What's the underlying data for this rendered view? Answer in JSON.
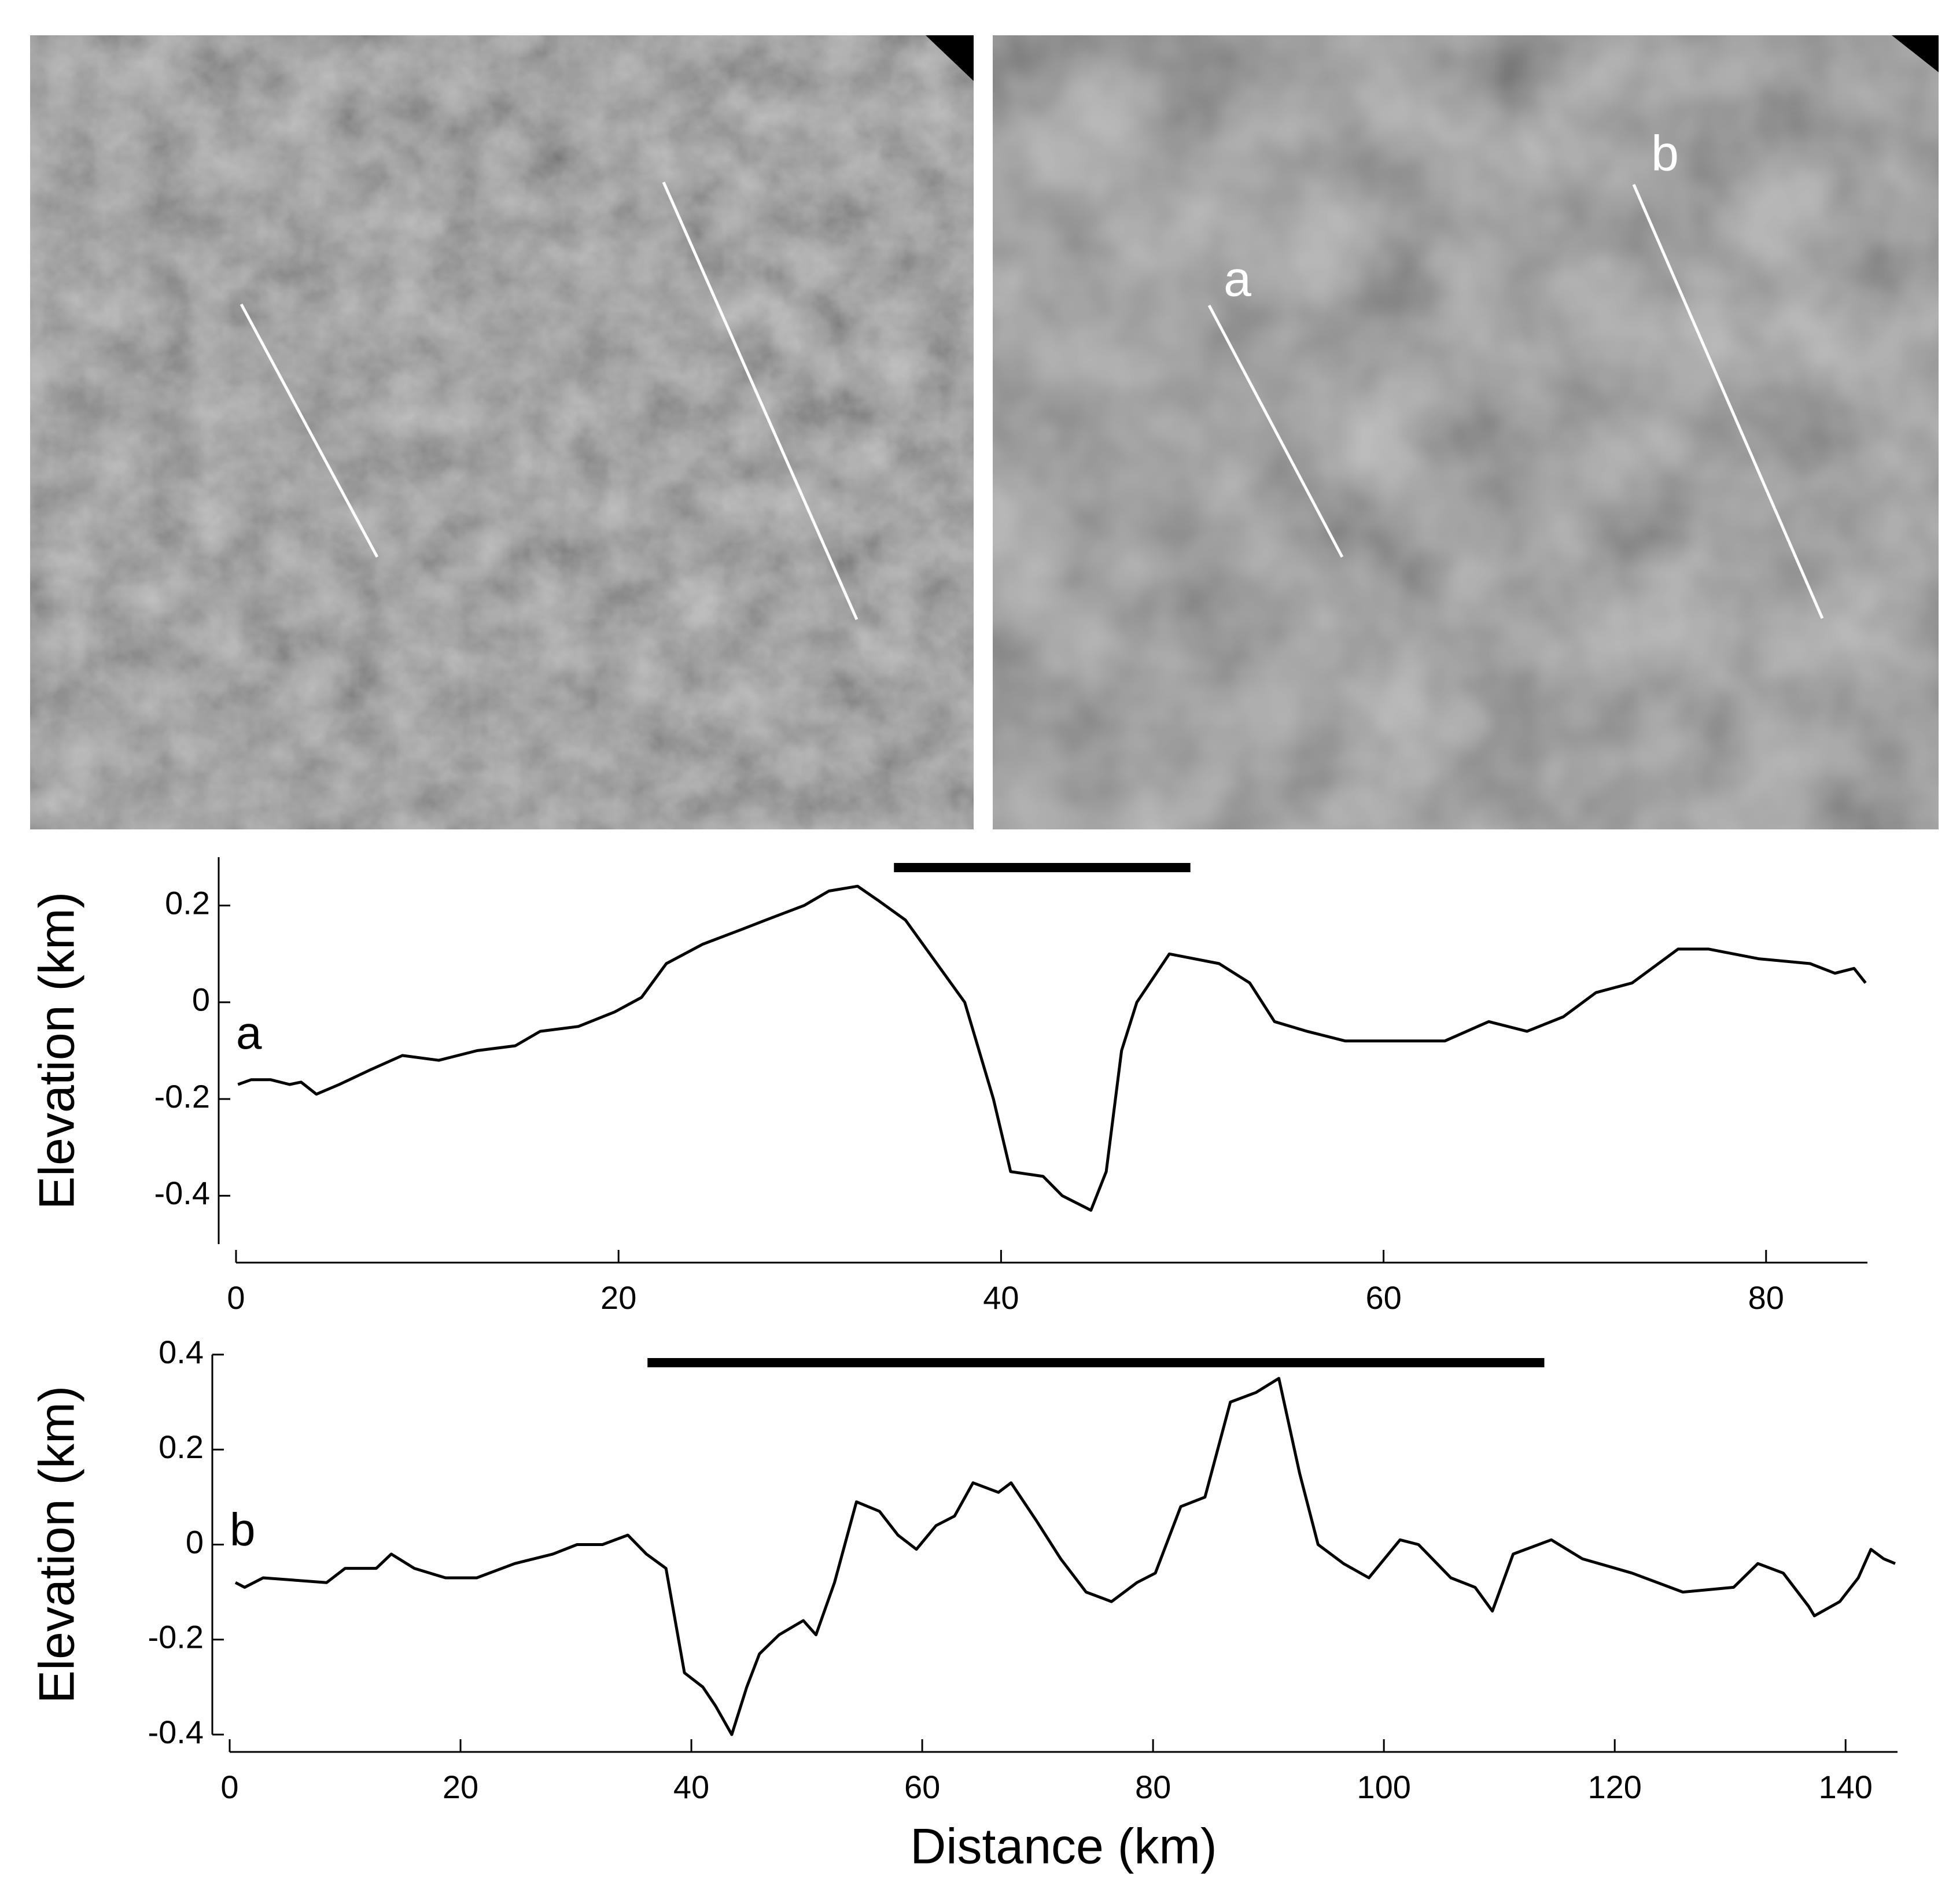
{
  "image_labels": [
    "a",
    "b"
  ],
  "chart_data": [
    {
      "type": "line",
      "label": "a",
      "ylabel": "Elevation (km)",
      "x": [
        0.1,
        0.8,
        1.8,
        2.8,
        3.4,
        4.2,
        5.4,
        7,
        8.7,
        10.6,
        12.6,
        14.6,
        15.9,
        17.9,
        19.8,
        21.2,
        22.5,
        24.4,
        26.4,
        27.7,
        29.7,
        31,
        32.5,
        33.6,
        35,
        38.1,
        39.6,
        40.5,
        42.2,
        43.2,
        44.7,
        45.5,
        46.3,
        47.1,
        48.8,
        51.4,
        53,
        54.3,
        56,
        58,
        59.9,
        63.2,
        65.5,
        67.5,
        69.4,
        71.1,
        73,
        75.4,
        77,
        79.6,
        82.3,
        83.6,
        84.6,
        85.2
      ],
      "values": [
        -0.17,
        -0.16,
        -0.16,
        -0.17,
        -0.165,
        -0.19,
        -0.17,
        -0.14,
        -0.11,
        -0.12,
        -0.1,
        -0.09,
        -0.06,
        -0.05,
        -0.02,
        0.01,
        0.08,
        0.12,
        0.15,
        0.17,
        0.2,
        0.23,
        0.24,
        0.21,
        0.17,
        0.0,
        -0.2,
        -0.35,
        -0.36,
        -0.4,
        -0.43,
        -0.35,
        -0.1,
        0.0,
        0.1,
        0.08,
        0.04,
        -0.04,
        -0.06,
        -0.08,
        -0.08,
        -0.08,
        -0.04,
        -0.06,
        -0.03,
        0.02,
        0.04,
        0.11,
        0.11,
        0.09,
        0.08,
        0.06,
        0.07,
        0.04
      ],
      "color": "#000000",
      "span": [
        34.4,
        49.9
      ],
      "xlim": [
        0,
        85.3
      ],
      "ylim": [
        -0.5,
        0.3
      ],
      "xticks": [
        0,
        20,
        40,
        60,
        80
      ],
      "yticks": [
        -0.4,
        -0.2,
        0,
        0.2
      ]
    },
    {
      "type": "line",
      "label": "b",
      "ylabel": "Elevation (km)",
      "xlabel": "Distance (km)",
      "x": [
        0.5,
        1.3,
        2.9,
        8.4,
        10,
        12.7,
        14,
        16,
        18.7,
        21.4,
        24.7,
        28,
        30.1,
        32.3,
        34.5,
        36.1,
        37.8,
        39.4,
        41,
        42.1,
        43.5,
        44.8,
        45.9,
        47.6,
        49.7,
        50.8,
        52.4,
        54.3,
        56.3,
        57.9,
        59.5,
        61.2,
        62.8,
        64.4,
        66.6,
        67.7,
        69.9,
        72,
        74.2,
        76.4,
        78.6,
        80.2,
        82.4,
        84.5,
        86.7,
        88.9,
        90.9,
        92.7,
        94.3,
        96.5,
        98.7,
        101.4,
        103,
        105.8,
        107.9,
        109.4,
        111.2,
        114.5,
        117.2,
        121.5,
        125.9,
        130.3,
        132.4,
        134.6,
        136.8,
        137.3,
        139.5,
        141.1,
        142.2,
        143.3,
        144.3
      ],
      "values": [
        -0.08,
        -0.09,
        -0.07,
        -0.08,
        -0.05,
        -0.05,
        -0.02,
        -0.05,
        -0.07,
        -0.07,
        -0.04,
        -0.02,
        0.0,
        0.0,
        0.02,
        -0.02,
        -0.05,
        -0.27,
        -0.3,
        -0.34,
        -0.4,
        -0.3,
        -0.23,
        -0.19,
        -0.16,
        -0.19,
        -0.08,
        0.09,
        0.07,
        0.02,
        -0.01,
        0.04,
        0.06,
        0.13,
        0.11,
        0.13,
        0.05,
        -0.03,
        -0.1,
        -0.12,
        -0.08,
        -0.06,
        0.08,
        0.1,
        0.3,
        0.32,
        0.35,
        0.15,
        0.0,
        -0.04,
        -0.07,
        0.01,
        0.0,
        -0.07,
        -0.09,
        -0.14,
        -0.02,
        0.01,
        -0.03,
        -0.06,
        -0.1,
        -0.09,
        -0.04,
        -0.06,
        -0.13,
        -0.15,
        -0.12,
        -0.07,
        -0.01,
        -0.03,
        -0.04
      ],
      "color": "#000000",
      "span": [
        36.2,
        113.9
      ],
      "xlim": [
        0,
        144.5
      ],
      "ylim": [
        -0.4,
        0.4
      ],
      "xticks": [
        0,
        20,
        40,
        60,
        80,
        100,
        120,
        140
      ],
      "yticks": [
        -0.4,
        -0.2,
        0,
        0.2,
        0.4
      ]
    }
  ]
}
